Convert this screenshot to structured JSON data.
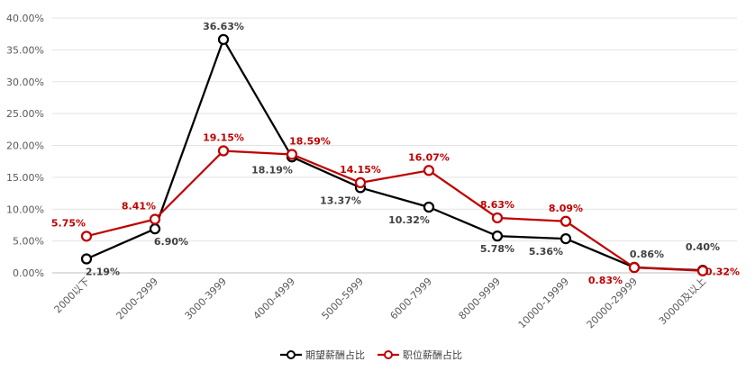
{
  "chart_data": {
    "type": "line",
    "categories": [
      "2000以下",
      "2000-2999",
      "3000-3999",
      "4000-4999",
      "5000-5999",
      "6000-7999",
      "8000-9999",
      "10000-19999",
      "20000-29999",
      "30000及以上"
    ],
    "series": [
      {
        "name": "期望薪酬占比",
        "color": "#000000",
        "values": [
          2.19,
          6.9,
          36.63,
          18.19,
          13.37,
          10.32,
          5.78,
          5.36,
          0.86,
          0.4
        ],
        "labels": [
          "2.19%",
          "6.90%",
          "36.63%",
          "18.19%",
          "13.37%",
          "10.32%",
          "5.78%",
          "5.36%",
          "0.86%",
          "0.40%"
        ]
      },
      {
        "name": "职位薪酬占比",
        "color": "#C00000",
        "values": [
          5.75,
          8.41,
          19.15,
          18.59,
          14.15,
          16.07,
          8.63,
          8.09,
          0.83,
          0.32
        ],
        "labels": [
          "5.75%",
          "8.41%",
          "19.15%",
          "18.59%",
          "14.15%",
          "16.07%",
          "8.63%",
          "8.09%",
          "0.83%",
          "0.32%"
        ]
      }
    ],
    "yticks": [
      "0.00%",
      "5.00%",
      "10.00%",
      "15.00%",
      "20.00%",
      "25.00%",
      "30.00%",
      "35.00%",
      "40.00%"
    ],
    "ylim": [
      0,
      40
    ],
    "grid": true,
    "legend": "bottom"
  }
}
